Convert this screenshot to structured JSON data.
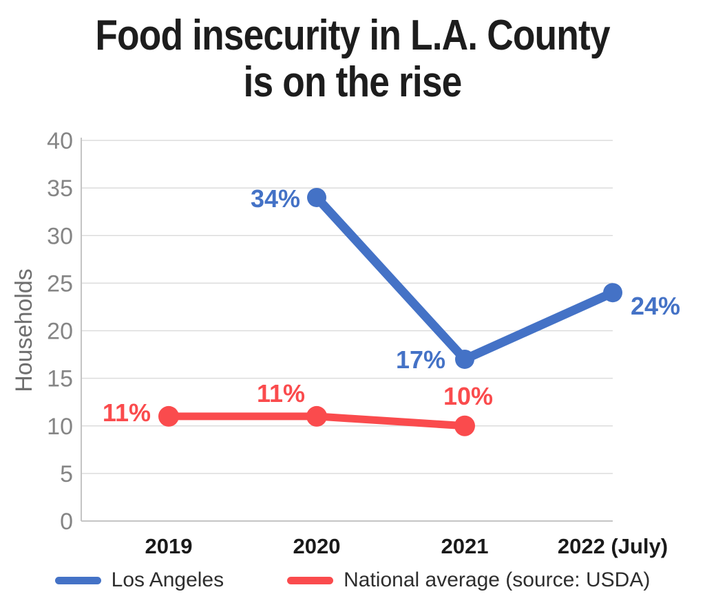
{
  "title": {
    "lines": [
      "Food insecurity in L.A. County",
      "is on the rise"
    ]
  },
  "colors": {
    "blue": "#4472C6",
    "red": "#FA4B4D",
    "grid": "#DCDCDC",
    "axis": "#C4C4C4",
    "tick_text": "#858585",
    "axis_title_text": "#6F6F6F",
    "x_label_text": "#1A1A1A",
    "title_text": "#1D1D1D",
    "legend_text": "#2E2E2E"
  },
  "chart_data": {
    "type": "line",
    "title": "Food insecurity in L.A. County is on the rise",
    "x_categories": [
      "2019",
      "2020",
      "2021",
      "2022 (July)"
    ],
    "xlabel": "",
    "ylabel": "Households",
    "ylim": [
      0,
      40
    ],
    "yticks": [
      0,
      5,
      10,
      15,
      20,
      25,
      30,
      35,
      40
    ],
    "grid": "horizontal",
    "legend_position": "bottom",
    "series": [
      {
        "name": "Los Angeles",
        "color_key": "blue",
        "points": [
          {
            "x": "2020",
            "value": 34,
            "label": "34%",
            "anchor": "end",
            "dx": -24,
            "dy": 14
          },
          {
            "x": "2021",
            "value": 17,
            "label": "17%",
            "anchor": "end",
            "dx": -28,
            "dy": 13
          },
          {
            "x": "2022 (July)",
            "value": 24,
            "label": "24%",
            "anchor": "start",
            "dx": 26,
            "dy": 32
          }
        ]
      },
      {
        "name": "National average (source: USDA)",
        "color_key": "red",
        "points": [
          {
            "x": "2019",
            "value": 11,
            "label": "11%",
            "anchor": "end",
            "dx": -26,
            "dy": 7
          },
          {
            "x": "2020",
            "value": 11,
            "label": "11%",
            "anchor": "middle",
            "dx": -52,
            "dy": -21
          },
          {
            "x": "2021",
            "value": 10,
            "label": "10%",
            "anchor": "middle",
            "dx": 5,
            "dy": -31
          }
        ]
      }
    ]
  },
  "legend": {
    "items": [
      {
        "label": "Los Angeles",
        "color_key": "blue"
      },
      {
        "label": "National average (source: USDA)",
        "color_key": "red"
      }
    ]
  }
}
